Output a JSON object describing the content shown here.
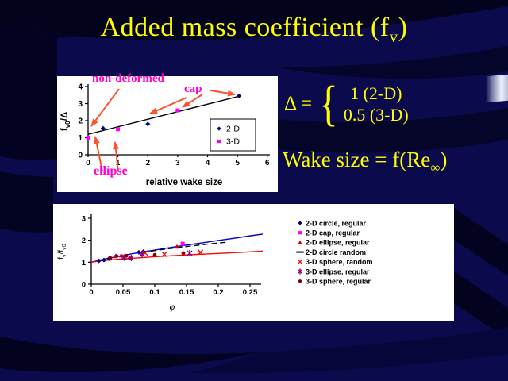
{
  "slide_title": {
    "pre": "Added mass coefficient (f",
    "sub": "v",
    "post": ")"
  },
  "delta_formula": {
    "lhs": "Δ =",
    "brace": "{",
    "top": "1 (2-D)",
    "bottom": "0.5 (3-D)"
  },
  "wake_formula": {
    "pre": "Wake size = f(Re",
    "sub": "∞",
    "post": ")"
  },
  "colors": {
    "slide_bg": "#0A0A4C",
    "title_text": "#FFFF00",
    "annotation": "#FF00CC",
    "arrow": "#FF5030",
    "chart_bg": "#FFFFFF"
  },
  "chart_data": [
    {
      "type": "scatter",
      "title": "",
      "xlabel": "relative wake size",
      "ylabel": "fv0/Δ",
      "ylabel_parts": [
        {
          "t": "f"
        },
        {
          "t": "v0",
          "sub": true
        },
        {
          "t": "/Δ"
        }
      ],
      "xlim": [
        0,
        6
      ],
      "ylim": [
        0,
        4
      ],
      "x_ticks": [
        "0",
        "1",
        "2",
        "3",
        "4",
        "5",
        "6"
      ],
      "y_ticks": [
        "0",
        "1",
        "2",
        "3",
        "4"
      ],
      "grid": false,
      "legend_position": "inside-right-boxed",
      "trendline": {
        "color": "#000000",
        "from": [
          0,
          1.2
        ],
        "to": [
          5.1,
          3.45
        ]
      },
      "legend": [
        {
          "label": "2-D",
          "marker": "diamond",
          "color": "#000080"
        },
        {
          "label": "3-D",
          "marker": "square",
          "color": "#FF00FF"
        }
      ],
      "series": [
        {
          "name": "2-D",
          "marker": "diamond",
          "color": "#000080",
          "points": [
            [
              0.5,
              1.55
            ],
            [
              2.0,
              1.8
            ],
            [
              5.05,
              3.45
            ]
          ]
        },
        {
          "name": "3-D",
          "marker": "square",
          "color": "#FF00FF",
          "points": [
            [
              0,
              1.0
            ],
            [
              1.0,
              1.5
            ],
            [
              3.0,
              2.6
            ]
          ]
        }
      ],
      "annotations": [
        {
          "text": "non-deformed"
        },
        {
          "text": "cap"
        },
        {
          "text": "ellipse"
        }
      ]
    },
    {
      "type": "scatter",
      "title": "",
      "xlabel": "φ",
      "ylabel": "fv/fv0",
      "ylabel_parts": [
        {
          "t": "f"
        },
        {
          "t": "v",
          "sub": true
        },
        {
          "t": "/f"
        },
        {
          "t": "v0",
          "sub": true
        }
      ],
      "xlim": [
        0,
        0.25
      ],
      "ylim": [
        0,
        3
      ],
      "x_ticks": [
        "0",
        "0.05",
        "0.1",
        "0.15",
        "0.2",
        "0.25"
      ],
      "y_ticks": [
        "0",
        "1",
        "2",
        "3"
      ],
      "grid": false,
      "legend_position": "right-outside",
      "curves": [
        {
          "name": "2-D trend",
          "color": "#0000CC",
          "dashed": false,
          "points": [
            [
              0,
              1
            ],
            [
              0.02,
              1.14
            ],
            [
              0.04,
              1.25
            ],
            [
              0.06,
              1.36
            ],
            [
              0.08,
              1.46
            ],
            [
              0.1,
              1.55
            ],
            [
              0.125,
              1.67
            ],
            [
              0.15,
              1.78
            ],
            [
              0.175,
              1.88
            ],
            [
              0.2,
              1.99
            ],
            [
              0.225,
              2.09
            ],
            [
              0.25,
              2.2
            ],
            [
              0.27,
              2.28
            ]
          ]
        },
        {
          "name": "3-D trend",
          "color": "#FF0000",
          "dashed": false,
          "points": [
            [
              0,
              1
            ],
            [
              0.02,
              1.08
            ],
            [
              0.05,
              1.15
            ],
            [
              0.08,
              1.21
            ],
            [
              0.1,
              1.25
            ],
            [
              0.15,
              1.33
            ],
            [
              0.2,
              1.4
            ],
            [
              0.25,
              1.47
            ],
            [
              0.27,
              1.5
            ]
          ]
        },
        {
          "name": "2-D circle random",
          "color": "#000000",
          "dashed": true,
          "points": [
            [
              0.08,
              1.45
            ],
            [
              0.11,
              1.57
            ],
            [
              0.14,
              1.68
            ],
            [
              0.17,
              1.78
            ],
            [
              0.195,
              1.86
            ],
            [
              0.21,
              1.9
            ]
          ]
        }
      ],
      "legend": [
        {
          "label": "2-D circle, regular",
          "marker": "diamond",
          "color": "#000080"
        },
        {
          "label": "2-D cap, regular",
          "marker": "square",
          "color": "#FF00FF"
        },
        {
          "label": "2-D ellipse, regular",
          "marker": "triangle",
          "color": "#CC0000"
        },
        {
          "label": "2-D circle random",
          "marker": "dash",
          "color": "#000000"
        },
        {
          "label": "3-D sphere, random",
          "marker": "x",
          "color": "#FF0000"
        },
        {
          "label": "3-D ellipse, regular",
          "marker": "asterisk",
          "color": "#800080"
        },
        {
          "label": "3-D sphere, regular",
          "marker": "dot",
          "color": "#800000"
        }
      ],
      "series": [
        {
          "name": "2-D circle, regular",
          "marker": "diamond",
          "color": "#000080",
          "points": [
            [
              0.012,
              1.06
            ],
            [
              0.02,
              1.1
            ],
            [
              0.028,
              1.16
            ],
            [
              0.04,
              1.28
            ],
            [
              0.075,
              1.45
            ],
            [
              0.082,
              1.48
            ]
          ]
        },
        {
          "name": "2-D cap, regular",
          "marker": "square",
          "color": "#FF00FF",
          "points": [
            [
              0.05,
              1.26
            ],
            [
              0.08,
              1.39
            ],
            [
              0.144,
              1.84
            ]
          ]
        },
        {
          "name": "2-D ellipse, regular",
          "marker": "triangle",
          "color": "#CC0000",
          "points": [
            [
              0.038,
              1.28
            ],
            [
              0.047,
              1.31
            ],
            [
              0.06,
              1.22
            ],
            [
              0.135,
              1.71
            ]
          ]
        },
        {
          "name": "3-D sphere, random",
          "marker": "x",
          "color": "#FF0000",
          "points": [
            [
              0.085,
              1.42
            ],
            [
              0.115,
              1.36
            ],
            [
              0.172,
              1.45
            ]
          ]
        },
        {
          "name": "3-D ellipse, regular",
          "marker": "asterisk",
          "color": "#800080",
          "points": [
            [
              0.052,
              1.21
            ],
            [
              0.063,
              1.19
            ],
            [
              0.08,
              1.37
            ],
            [
              0.155,
              1.41
            ]
          ]
        },
        {
          "name": "3-D sphere, regular",
          "marker": "dot",
          "color": "#800000",
          "points": [
            [
              0.03,
              1.19
            ],
            [
              0.055,
              1.29
            ],
            [
              0.1,
              1.33
            ],
            [
              0.145,
              1.41
            ]
          ]
        }
      ]
    }
  ]
}
